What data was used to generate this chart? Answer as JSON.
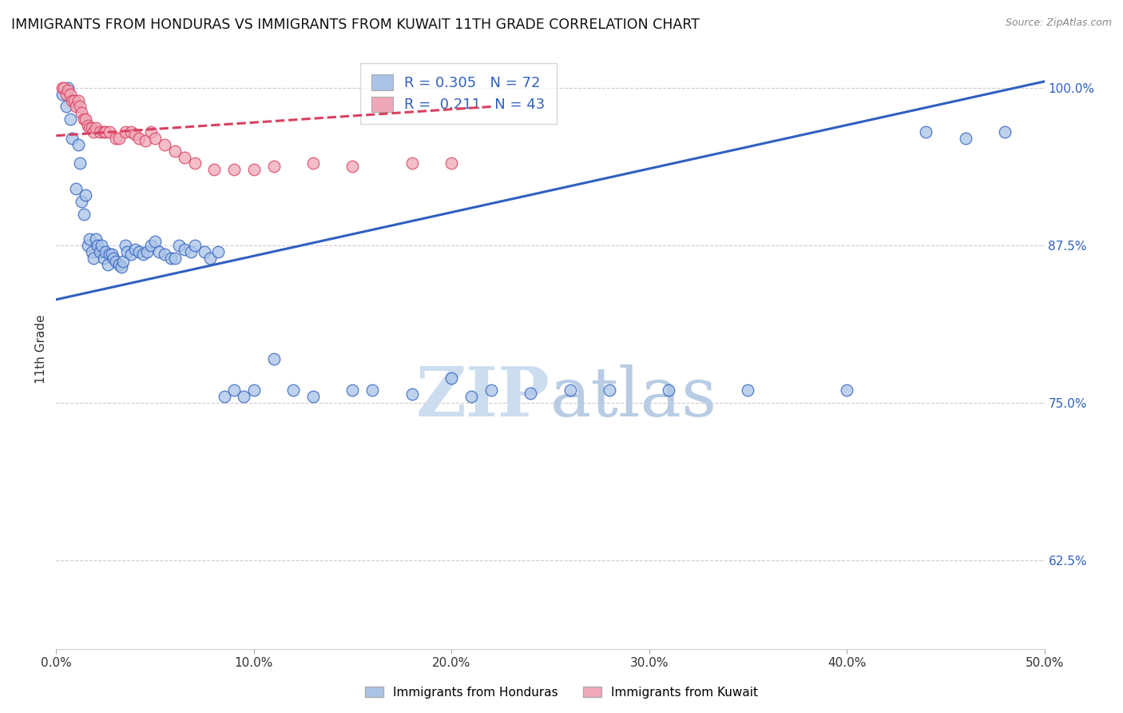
{
  "title": "IMMIGRANTS FROM HONDURAS VS IMMIGRANTS FROM KUWAIT 11TH GRADE CORRELATION CHART",
  "source": "Source: ZipAtlas.com",
  "ylabel": "11th Grade",
  "legend_label_1": "Immigrants from Honduras",
  "legend_label_2": "Immigrants from Kuwait",
  "r1": 0.305,
  "n1": 72,
  "r2": 0.211,
  "n2": 43,
  "xlim": [
    0.0,
    0.5
  ],
  "ylim": [
    0.555,
    1.03
  ],
  "yticks": [
    0.625,
    0.75,
    0.875,
    1.0
  ],
  "ytick_labels": [
    "62.5%",
    "75.0%",
    "87.5%",
    "100.0%"
  ],
  "xticks": [
    0.0,
    0.1,
    0.2,
    0.3,
    0.4,
    0.5
  ],
  "xtick_labels": [
    "0.0%",
    "10.0%",
    "20.0%",
    "30.0%",
    "40.0%",
    "50.0%"
  ],
  "color_blue": "#aac4e8",
  "color_pink": "#f0a8b8",
  "color_blue_line": "#3060c0",
  "color_pink_line": "#d84060",
  "watermark_zip": "ZIP",
  "watermark_atlas": "atlas",
  "blue_line_x0": 0.0,
  "blue_line_y0": 0.832,
  "blue_line_x1": 0.5,
  "blue_line_y1": 1.005,
  "pink_line_x0": 0.0,
  "pink_line_y0": 0.962,
  "pink_line_x1": 0.22,
  "pink_line_y1": 0.985,
  "blue_scatter_x": [
    0.003,
    0.005,
    0.006,
    0.007,
    0.008,
    0.009,
    0.01,
    0.011,
    0.012,
    0.013,
    0.014,
    0.015,
    0.016,
    0.017,
    0.018,
    0.019,
    0.02,
    0.021,
    0.022,
    0.023,
    0.024,
    0.025,
    0.026,
    0.027,
    0.028,
    0.029,
    0.03,
    0.032,
    0.033,
    0.034,
    0.035,
    0.036,
    0.038,
    0.04,
    0.042,
    0.044,
    0.046,
    0.048,
    0.05,
    0.052,
    0.055,
    0.058,
    0.06,
    0.062,
    0.065,
    0.068,
    0.07,
    0.075,
    0.078,
    0.082,
    0.085,
    0.09,
    0.095,
    0.1,
    0.11,
    0.12,
    0.13,
    0.15,
    0.16,
    0.18,
    0.2,
    0.21,
    0.22,
    0.24,
    0.26,
    0.28,
    0.31,
    0.35,
    0.4,
    0.44,
    0.46,
    0.48
  ],
  "blue_scatter_y": [
    0.995,
    0.985,
    1.0,
    0.975,
    0.96,
    0.99,
    0.92,
    0.955,
    0.94,
    0.91,
    0.9,
    0.915,
    0.875,
    0.88,
    0.87,
    0.865,
    0.88,
    0.875,
    0.87,
    0.875,
    0.865,
    0.87,
    0.86,
    0.868,
    0.868,
    0.865,
    0.862,
    0.86,
    0.858,
    0.862,
    0.875,
    0.87,
    0.868,
    0.872,
    0.87,
    0.868,
    0.87,
    0.875,
    0.878,
    0.87,
    0.868,
    0.865,
    0.865,
    0.875,
    0.872,
    0.87,
    0.875,
    0.87,
    0.865,
    0.87,
    0.755,
    0.76,
    0.755,
    0.76,
    0.785,
    0.76,
    0.755,
    0.76,
    0.76,
    0.757,
    0.77,
    0.755,
    0.76,
    0.758,
    0.76,
    0.76,
    0.76,
    0.76,
    0.76,
    0.965,
    0.96,
    0.965
  ],
  "pink_scatter_x": [
    0.003,
    0.004,
    0.005,
    0.006,
    0.007,
    0.008,
    0.009,
    0.01,
    0.011,
    0.012,
    0.013,
    0.014,
    0.015,
    0.016,
    0.017,
    0.018,
    0.019,
    0.02,
    0.022,
    0.024,
    0.025,
    0.027,
    0.03,
    0.032,
    0.035,
    0.038,
    0.04,
    0.042,
    0.045,
    0.048,
    0.05,
    0.055,
    0.06,
    0.065,
    0.07,
    0.08,
    0.09,
    0.1,
    0.11,
    0.13,
    0.15,
    0.18,
    0.2
  ],
  "pink_scatter_y": [
    1.0,
    1.0,
    0.995,
    0.998,
    0.995,
    0.99,
    0.99,
    0.985,
    0.99,
    0.985,
    0.98,
    0.975,
    0.975,
    0.97,
    0.968,
    0.968,
    0.965,
    0.968,
    0.965,
    0.965,
    0.965,
    0.965,
    0.96,
    0.96,
    0.965,
    0.965,
    0.963,
    0.96,
    0.958,
    0.965,
    0.96,
    0.955,
    0.95,
    0.945,
    0.94,
    0.935,
    0.935,
    0.935,
    0.938,
    0.94,
    0.938,
    0.94,
    0.94
  ]
}
